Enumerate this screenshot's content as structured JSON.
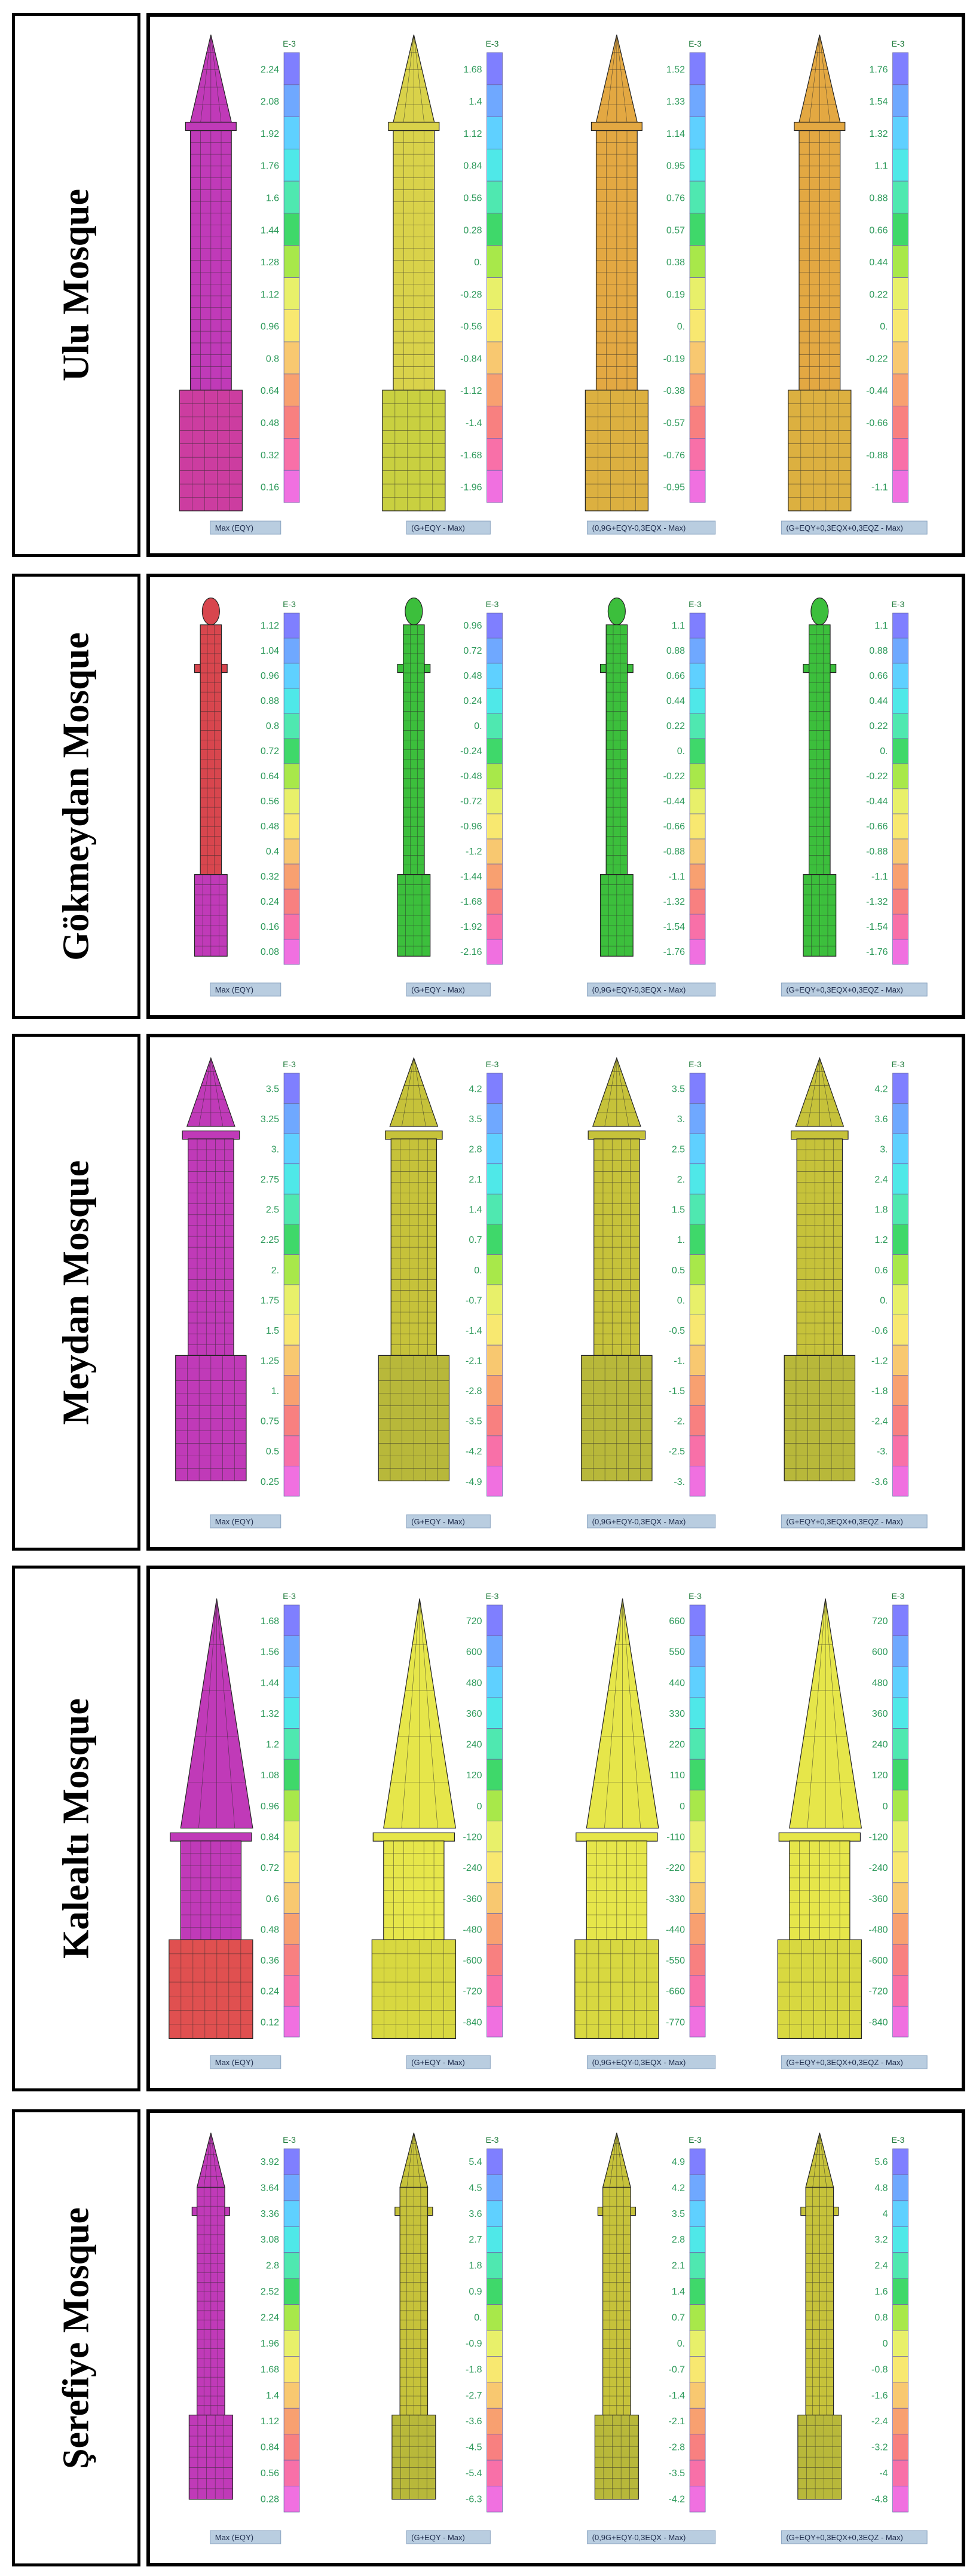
{
  "mosques": [
    {
      "name": "Ulu Mosque",
      "scale_header": "E-3",
      "shape": "ulu",
      "columns": [
        {
          "caption": "Max  (EQY)",
          "ticks": [
            "2.24",
            "2.08",
            "1.92",
            "1.76",
            "1.6",
            "1.44",
            "1.28",
            "1.12",
            "0.96",
            "0.8",
            "0.64",
            "0.48",
            "0.32",
            "0.16"
          ],
          "fill": "#c03ab8",
          "fill2": "#cc3da0"
        },
        {
          "caption": "(G+EQY - Max)",
          "ticks": [
            "1.68",
            "1.4",
            "1.12",
            "0.84",
            "0.56",
            "0.28",
            "0.",
            "-0.28",
            "-0.56",
            "-0.84",
            "-1.12",
            "-1.4",
            "-1.68",
            "-1.96"
          ],
          "fill": "#d9d24a",
          "fill2": "#c9d040"
        },
        {
          "caption": "(0,9G+EQY-0,3EQX - Max)",
          "ticks": [
            "1.52",
            "1.33",
            "1.14",
            "0.95",
            "0.76",
            "0.57",
            "0.38",
            "0.19",
            "0.",
            "-0.19",
            "-0.38",
            "-0.57",
            "-0.76",
            "-0.95"
          ],
          "fill": "#e3a842",
          "fill2": "#dcb040"
        },
        {
          "caption": "(G+EQY+0,3EQX+0,3EQZ - Max)",
          "ticks": [
            "1.76",
            "1.54",
            "1.32",
            "1.1",
            "0.88",
            "0.66",
            "0.44",
            "0.22",
            "0.",
            "-0.22",
            "-0.44",
            "-0.66",
            "-0.88",
            "-1.1"
          ],
          "fill": "#e3a842",
          "fill2": "#dcb040"
        }
      ]
    },
    {
      "name": "Gökmeydan Mosque",
      "scale_header": "E-3",
      "shape": "gok",
      "columns": [
        {
          "caption": "Max  (EQY)",
          "ticks": [
            "1.12",
            "1.04",
            "0.96",
            "0.88",
            "0.8",
            "0.72",
            "0.64",
            "0.56",
            "0.48",
            "0.4",
            "0.32",
            "0.24",
            "0.16",
            "0.08"
          ],
          "fill": "#d8464e",
          "fill2": "#c03ab8"
        },
        {
          "caption": "(G+EQY - Max)",
          "ticks": [
            "0.96",
            "0.72",
            "0.48",
            "0.24",
            "0.",
            "-0.24",
            "-0.48",
            "-0.72",
            "-0.96",
            "-1.2",
            "-1.44",
            "-1.68",
            "-1.92",
            "-2.16"
          ],
          "fill": "#3cbf3c",
          "fill2": "#3cbf3c"
        },
        {
          "caption": "(0,9G+EQY-0,3EQX - Max)",
          "ticks": [
            "1.1",
            "0.88",
            "0.66",
            "0.44",
            "0.22",
            "0.",
            "-0.22",
            "-0.44",
            "-0.66",
            "-0.88",
            "-1.1",
            "-1.32",
            "-1.54",
            "-1.76"
          ],
          "fill": "#3cbf3c",
          "fill2": "#3cbf3c"
        },
        {
          "caption": "(G+EQY+0,3EQX+0,3EQZ - Max)",
          "ticks": [
            "1.1",
            "0.88",
            "0.66",
            "0.44",
            "0.22",
            "0.",
            "-0.22",
            "-0.44",
            "-0.66",
            "-0.88",
            "-1.1",
            "-1.32",
            "-1.54",
            "-1.76"
          ],
          "fill": "#3cbf3c",
          "fill2": "#3cbf3c"
        }
      ]
    },
    {
      "name": "Meydan Mosque",
      "scale_header": "E-3",
      "shape": "meydan",
      "columns": [
        {
          "caption": "Max  (EQY)",
          "ticks": [
            "3.5",
            "3.25",
            "3.",
            "2.75",
            "2.5",
            "2.25",
            "2.",
            "1.75",
            "1.5",
            "1.25",
            "1.",
            "0.75",
            "0.5",
            "0.25"
          ],
          "fill": "#c03ab8",
          "fill2": "#c03ab8"
        },
        {
          "caption": "(G+EQY - Max)",
          "ticks": [
            "4.2",
            "3.5",
            "2.8",
            "2.1",
            "1.4",
            "0.7",
            "0.",
            "-0.7",
            "-1.4",
            "-2.1",
            "-2.8",
            "-3.5",
            "-4.2",
            "-4.9"
          ],
          "fill": "#c6c23a",
          "fill2": "#b8b83a"
        },
        {
          "caption": "(0,9G+EQY-0,3EQX - Max)",
          "ticks": [
            "3.5",
            "3.",
            "2.5",
            "2.",
            "1.5",
            "1.",
            "0.5",
            "0.",
            "-0.5",
            "-1.",
            "-1.5",
            "-2.",
            "-2.5",
            "-3."
          ],
          "fill": "#c6c23a",
          "fill2": "#b8b83a"
        },
        {
          "caption": "(G+EQY+0,3EQX+0,3EQZ - Max)",
          "ticks": [
            "4.2",
            "3.6",
            "3.",
            "2.4",
            "1.8",
            "1.2",
            "0.6",
            "0.",
            "-0.6",
            "-1.2",
            "-1.8",
            "-2.4",
            "-3.",
            "-3.6"
          ],
          "fill": "#c6c23a",
          "fill2": "#b8b83a"
        }
      ]
    },
    {
      "name": "Kalealtı Mosque",
      "scale_header": "E-3",
      "shape": "kale",
      "columns": [
        {
          "caption": "Max  (EQY)",
          "ticks": [
            "1.68",
            "1.56",
            "1.44",
            "1.32",
            "1.2",
            "1.08",
            "0.96",
            "0.84",
            "0.72",
            "0.6",
            "0.48",
            "0.36",
            "0.24",
            "0.12"
          ],
          "fill": "#c03ab8",
          "fill2": "#e05050"
        },
        {
          "caption": "(G+EQY - Max)",
          "ticks": [
            "720",
            "600",
            "480",
            "360",
            "240",
            "120",
            "0",
            "-120",
            "-240",
            "-360",
            "-480",
            "-600",
            "-720",
            "-840"
          ],
          "fill": "#e6e64a",
          "fill2": "#d8d840"
        },
        {
          "caption": "(0,9G+EQY-0,3EQX - Max)",
          "ticks": [
            "660",
            "550",
            "440",
            "330",
            "220",
            "110",
            "0",
            "-110",
            "-220",
            "-330",
            "-440",
            "-550",
            "-660",
            "-770"
          ],
          "fill": "#e6e64a",
          "fill2": "#d8d840"
        },
        {
          "caption": "(G+EQY+0,3EQX+0,3EQZ - Max)",
          "ticks": [
            "720",
            "600",
            "480",
            "360",
            "240",
            "120",
            "0",
            "-120",
            "-240",
            "-360",
            "-480",
            "-600",
            "-720",
            "-840"
          ],
          "fill": "#e6e64a",
          "fill2": "#d8d840"
        }
      ]
    },
    {
      "name": "Şerefiye Mosque",
      "scale_header": "E-3",
      "shape": "seref",
      "columns": [
        {
          "caption": "Max  (EQY)",
          "ticks": [
            "3.92",
            "3.64",
            "3.36",
            "3.08",
            "2.8",
            "2.52",
            "2.24",
            "1.96",
            "1.68",
            "1.4",
            "1.12",
            "0.84",
            "0.56",
            "0.28"
          ],
          "fill": "#c03ab8",
          "fill2": "#c03ab8"
        },
        {
          "caption": "(G+EQY - Max)",
          "ticks": [
            "5.4",
            "4.5",
            "3.6",
            "2.7",
            "1.8",
            "0.9",
            "0.",
            "-0.9",
            "-1.8",
            "-2.7",
            "-3.6",
            "-4.5",
            "-5.4",
            "-6.3"
          ],
          "fill": "#c6c23a",
          "fill2": "#b8b83a"
        },
        {
          "caption": "(0,9G+EQY-0,3EQX - Max)",
          "ticks": [
            "4.9",
            "4.2",
            "3.5",
            "2.8",
            "2.1",
            "1.4",
            "0.7",
            "0.",
            "-0.7",
            "-1.4",
            "-2.1",
            "-2.8",
            "-3.5",
            "-4.2"
          ],
          "fill": "#c6c23a",
          "fill2": "#b8b83a"
        },
        {
          "caption": "(G+EQY+0,3EQX+0,3EQZ - Max)",
          "ticks": [
            "5.6",
            "4.8",
            "4",
            "3.2",
            "2.4",
            "1.6",
            "0.8",
            "0",
            "-0.8",
            "-1.6",
            "-2.4",
            "-3.2",
            "-4",
            "-4.8"
          ],
          "fill": "#c6c23a",
          "fill2": "#b8b83a"
        }
      ]
    }
  ],
  "colorbar": [
    "#7f7fff",
    "#6fa8ff",
    "#5fd0ff",
    "#4fe8e8",
    "#4fe8b0",
    "#3fd86a",
    "#a8e84a",
    "#e8f06a",
    "#f8e870",
    "#f8c870",
    "#f8a070",
    "#f88080",
    "#f870a8",
    "#f070e0"
  ]
}
